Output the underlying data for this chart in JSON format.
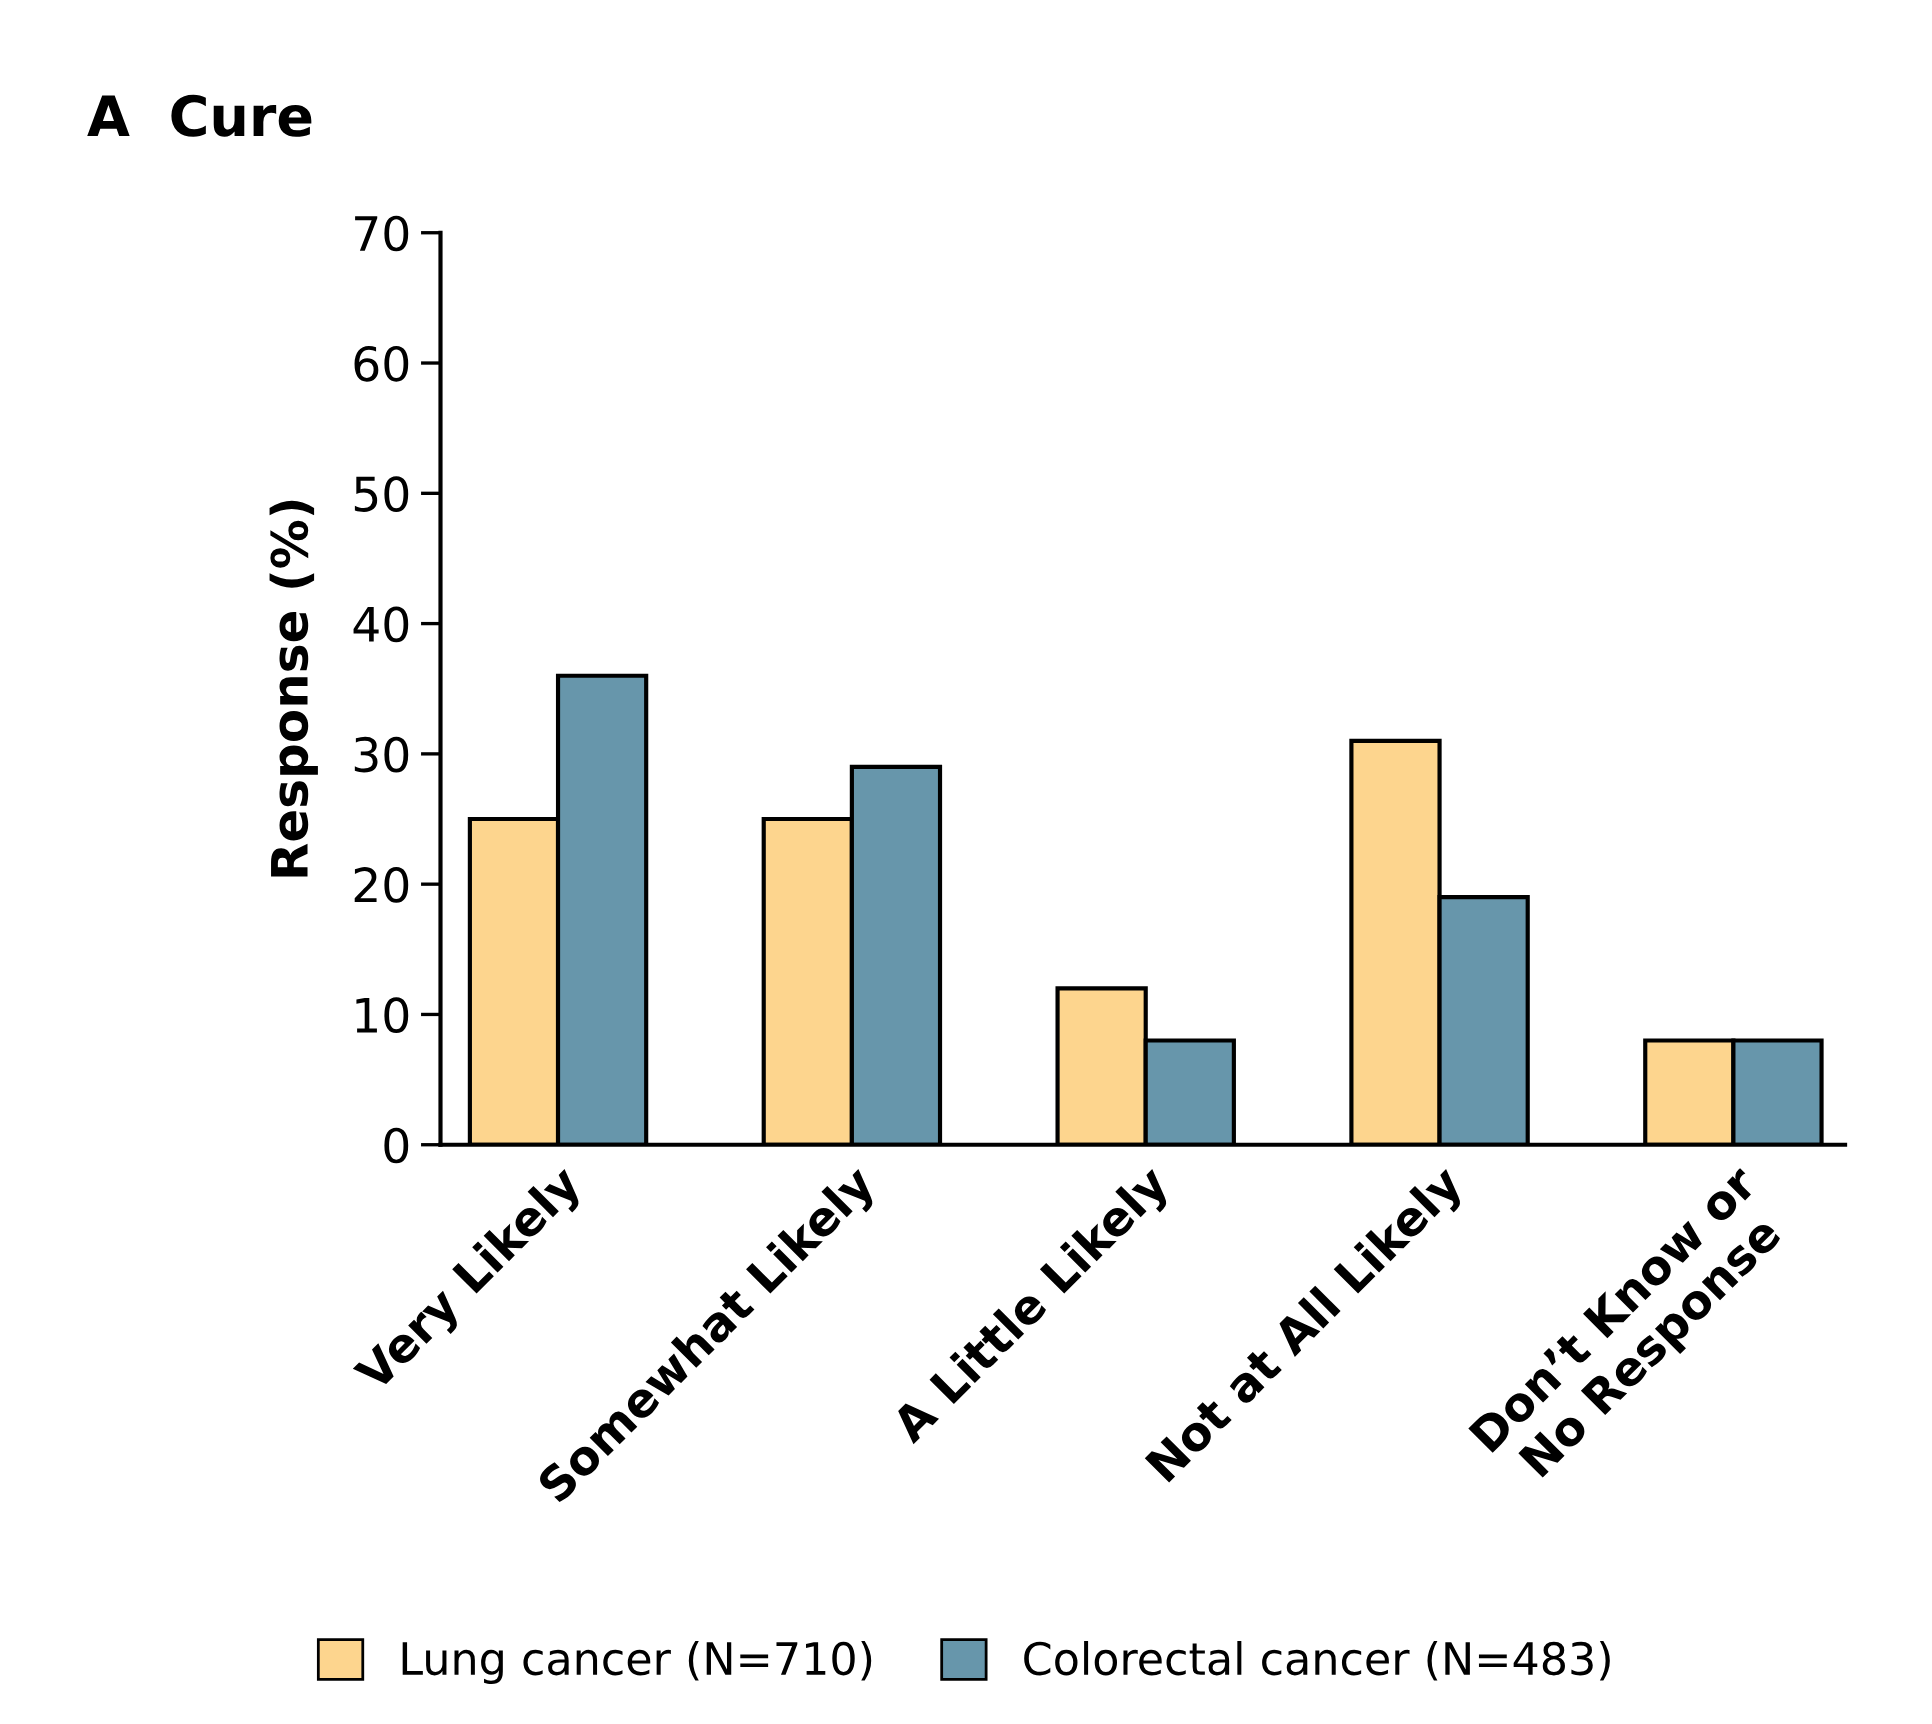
{
  "chart_data": {
    "type": "bar",
    "title": "A  Cure",
    "ylabel": "Response (%)",
    "categories": [
      "Very Likely",
      "Somewhat Likely",
      "A Little Likely",
      "Not at All Likely",
      "Don’t Know or\nNo Response"
    ],
    "series": [
      {
        "name": "Lung cancer (N=710)",
        "color": "#fdd58e",
        "values": [
          25,
          25,
          12,
          31,
          8
        ]
      },
      {
        "name": "Colorectal cancer (N=483)",
        "color": "#6796ab",
        "values": [
          36,
          29,
          8,
          19,
          8
        ]
      }
    ],
    "ylim": [
      0,
      70
    ],
    "yticks": [
      0,
      10,
      20,
      30,
      40,
      50,
      60,
      70
    ],
    "grid": false,
    "legend": "bottom"
  }
}
